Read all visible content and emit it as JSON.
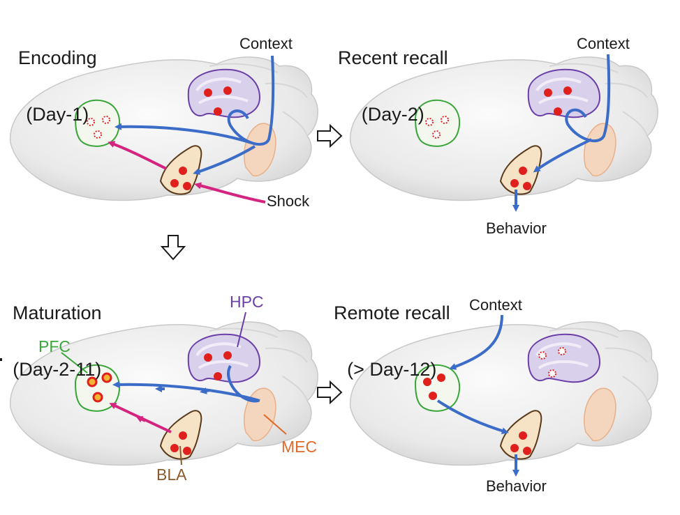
{
  "panels": [
    {
      "id": "encoding",
      "title_line1": "Encoding",
      "title_line2": "(Day-1)"
    },
    {
      "id": "recent",
      "title_line1": "Recent recall",
      "title_line2": "(Day-2)"
    },
    {
      "id": "maturation",
      "title_line1": "Maturation",
      "title_line2": "(Day-2-11)"
    },
    {
      "id": "remote",
      "title_line1": "Remote recall",
      "title_line2": "(> Day-12)"
    }
  ],
  "labels": {
    "context": "Context",
    "shock": "Shock",
    "behavior": "Behavior"
  },
  "regions": {
    "pfc": "PFC",
    "hpc": "HPC",
    "bla": "BLA",
    "mec": "MEC"
  },
  "colors": {
    "context_arrow": "#3a6cc8",
    "shock_arrow": "#d4247f",
    "pfc": "#3aa63a",
    "hpc": "#6a3fa8",
    "bla": "#8a5a2a",
    "mec": "#e06a2a",
    "engram": "#e0201c"
  }
}
